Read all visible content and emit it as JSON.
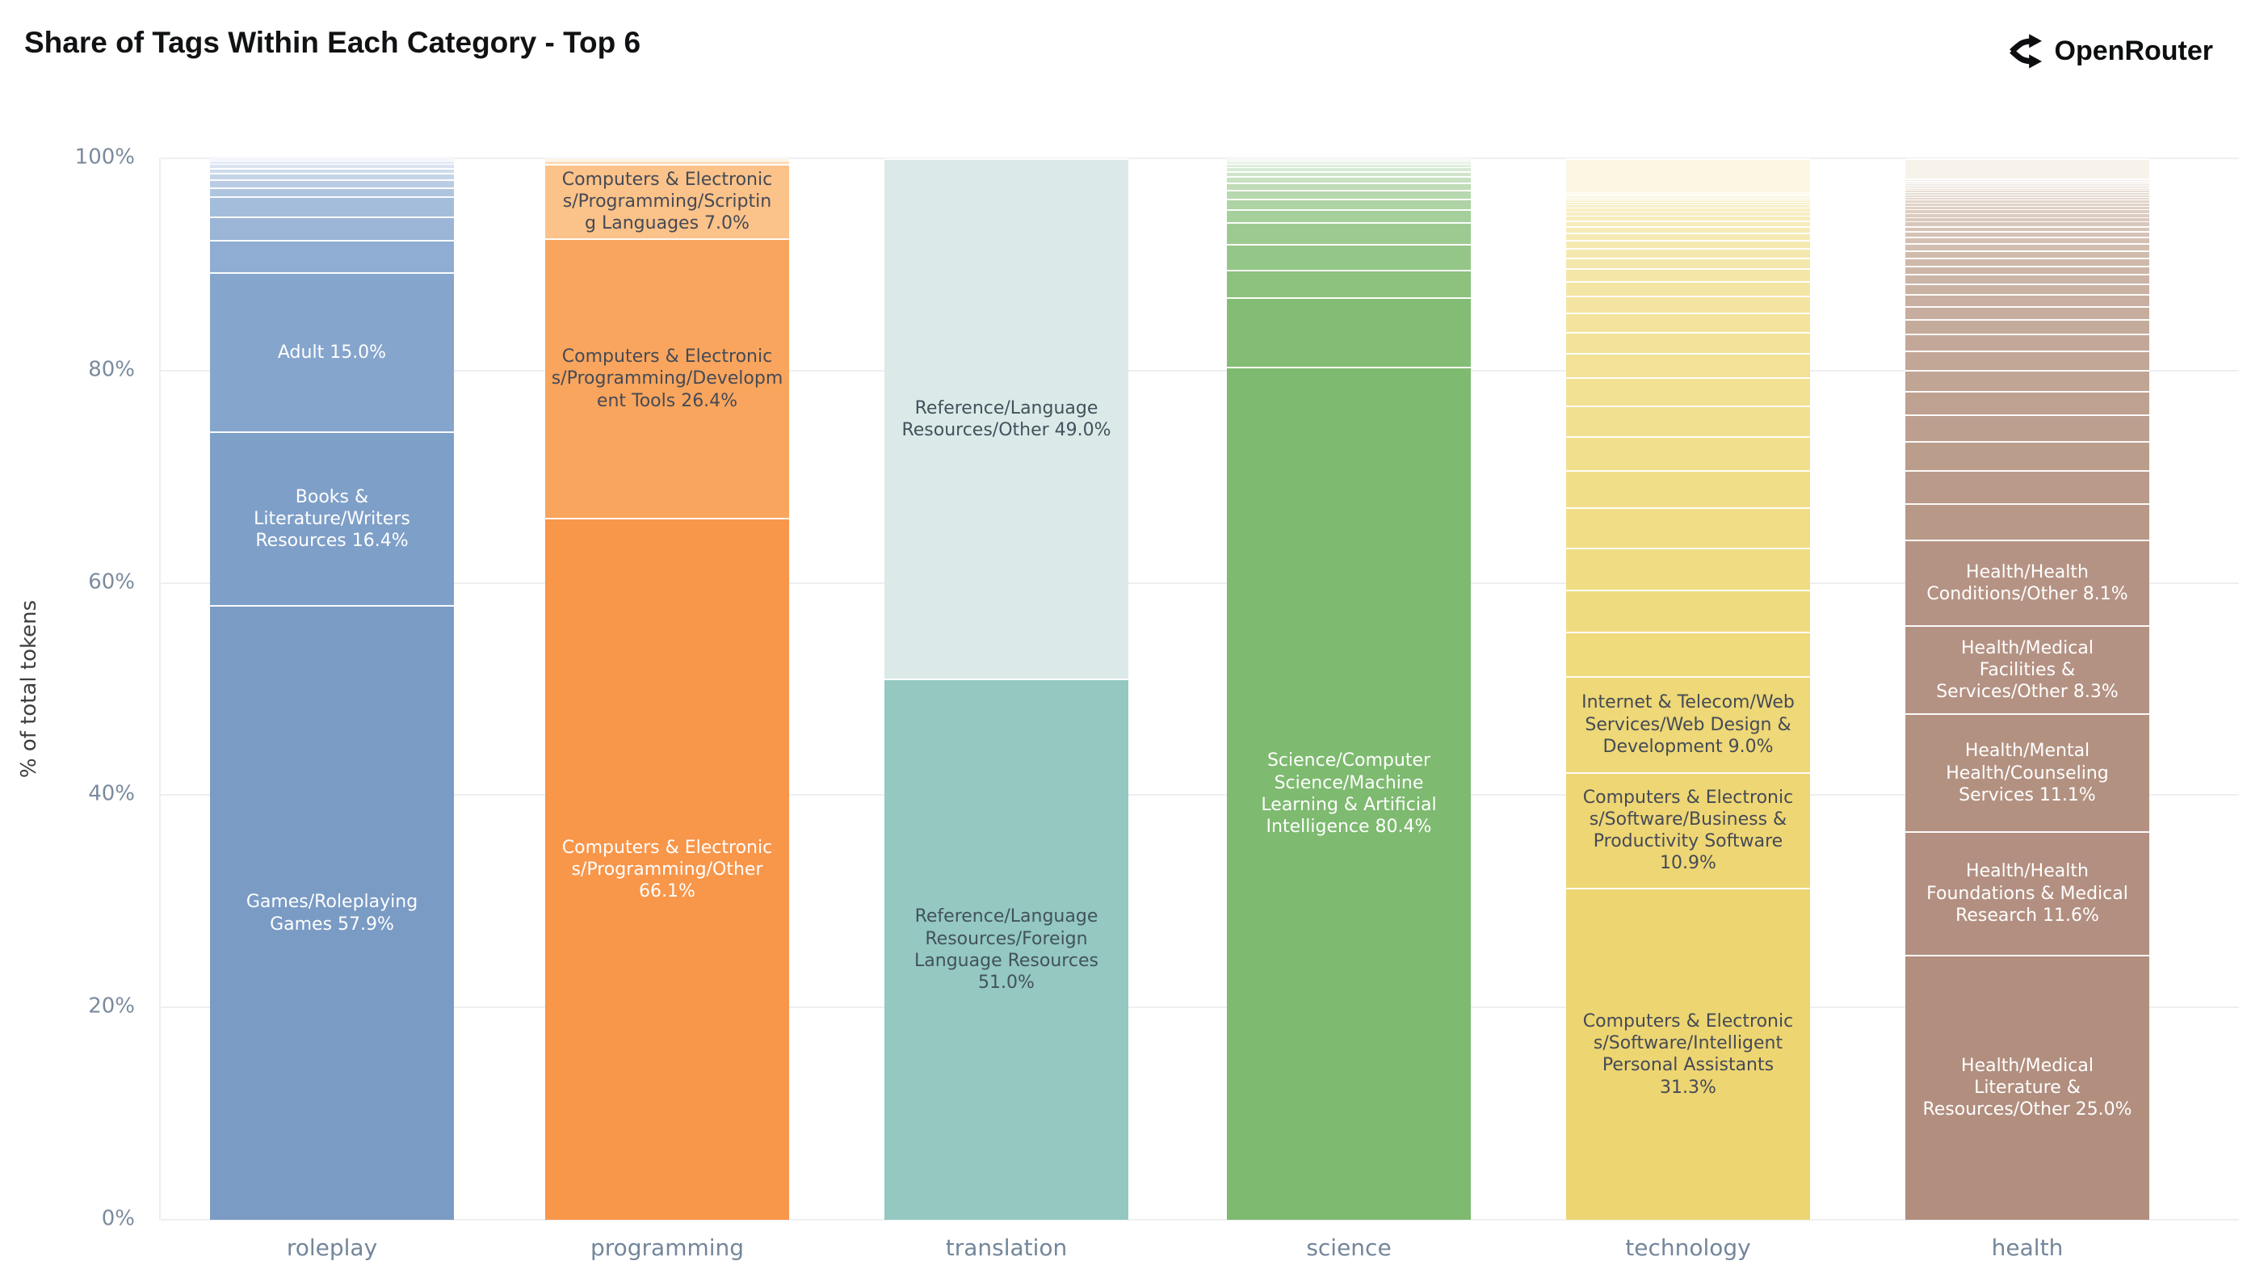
{
  "header": {
    "title": "Share of Tags Within Each Category - Top 6",
    "brand": "OpenRouter",
    "brand_icon": "openrouter-fork-icon"
  },
  "chart_data": {
    "type": "bar",
    "stacked": true,
    "normalized": "percent",
    "title": "Share of Tags Within Each Category - Top 6",
    "xlabel": "",
    "ylabel": "% of total tokens",
    "ylim": [
      0,
      100
    ],
    "grid": true,
    "legend": false,
    "yticks": [
      {
        "value": 0,
        "label": "0%"
      },
      {
        "value": 20,
        "label": "20%"
      },
      {
        "value": 40,
        "label": "40%"
      },
      {
        "value": 60,
        "label": "60%"
      },
      {
        "value": 80,
        "label": "80%"
      },
      {
        "value": 100,
        "label": "100%"
      }
    ],
    "categories": [
      "roleplay",
      "programming",
      "translation",
      "science",
      "technology",
      "health"
    ],
    "bars": [
      {
        "category": "roleplay",
        "segments": [
          {
            "label": "Games/Roleplaying\nGames 57.9%",
            "value": 57.9,
            "color": "#7a9bc4",
            "text_color": "#ffffff"
          },
          {
            "label": "Books &\nLiterature/Writers\nResources 16.4%",
            "value": 16.4,
            "color": "#7e9fc8",
            "text_color": "#ffffff"
          },
          {
            "label": "Adult 15.0%",
            "value": 15.0,
            "color": "#85a5cc",
            "text_color": "#ffffff"
          }
        ],
        "tail": {
          "values": [
            3.0,
            2.2,
            1.9,
            0.9,
            0.7,
            0.6,
            0.5,
            0.4,
            0.3,
            0.2
          ],
          "color_from": "#8fadd2",
          "color_to": "#eff3fa"
        }
      },
      {
        "category": "programming",
        "segments": [
          {
            "label": "Computers & Electronic\ns/Programming/Other\n66.1%",
            "value": 66.1,
            "color": "#f8964a",
            "text_color": "#ffffff"
          },
          {
            "label": "Computers & Electronic\ns/Programming/Developm\nent Tools 26.4%",
            "value": 26.4,
            "color": "#f9a55d",
            "text_color": "#454a56"
          },
          {
            "label": "Computers & Electronic\ns/Programming/Scriptin\ng Languages 7.0%",
            "value": 7.0,
            "color": "#fbc289",
            "text_color": "#454a56"
          }
        ],
        "tail": {
          "values": [
            0.3,
            0.2
          ],
          "color_from": "#fddcb8",
          "color_to": "#fdf0dc"
        }
      },
      {
        "category": "translation",
        "segments": [
          {
            "label": "Reference/Language\nResources/Foreign\nLanguage Resources\n51.0%",
            "value": 51.0,
            "color": "#94c8c1",
            "text_color": "#42525c"
          },
          {
            "label": "Reference/Language\nResources/Other 49.0%",
            "value": 49.0,
            "color": "#dbeae8",
            "text_color": "#42525c"
          }
        ],
        "tail": {
          "values": [],
          "color_from": "#dbeae8",
          "color_to": "#f2f7f6"
        }
      },
      {
        "category": "science",
        "segments": [
          {
            "label": "Science/Computer\nScience/Machine\nLearning & Artificial\nIntelligence 80.4%",
            "value": 80.4,
            "color": "#7eba70",
            "text_color": "#ffffff"
          }
        ],
        "tail": {
          "values": [
            6.5,
            2.6,
            2.4,
            2.1,
            1.2,
            1.0,
            0.8,
            0.7,
            0.6,
            0.5,
            0.4,
            0.3,
            0.3,
            0.2
          ],
          "color_from": "#83bd75",
          "color_to": "#f2f7f0"
        }
      },
      {
        "category": "technology",
        "segments": [
          {
            "label": "Computers & Electronic\ns/Software/Intelligent\nPersonal Assistants\n31.3%",
            "value": 31.3,
            "color": "#edd572",
            "text_color": "#454a56"
          },
          {
            "label": "Computers & Electronic\ns/Software/Business &\nProductivity Software\n10.9%",
            "value": 10.9,
            "color": "#eed674",
            "text_color": "#454a56"
          },
          {
            "label": "Internet & Telecom/Web\nServices/Web Design &\nDevelopment 9.0%",
            "value": 9.0,
            "color": "#eed877",
            "text_color": "#454a56"
          }
        ],
        "tail": {
          "values": [
            4.2,
            4.0,
            3.95,
            3.8,
            3.5,
            3.2,
            2.9,
            2.6,
            2.3,
            2.0,
            1.8,
            1.6,
            1.4,
            1.2,
            1.0,
            0.9,
            0.8,
            0.7,
            0.6,
            0.5,
            0.45,
            0.4,
            0.35,
            0.3,
            0.25,
            0.2,
            0.2,
            0.15,
            0.15,
            0.1,
            0.1,
            3.2
          ],
          "color_from": "#efda7c",
          "color_to": "#fbf7e3"
        }
      },
      {
        "category": "health",
        "segments": [
          {
            "label": "Health/Medical\nLiterature &\nResources/Other 25.0%",
            "value": 25.0,
            "color": "#b18e7e",
            "text_color": "#ffffff"
          },
          {
            "label": "Health/Health\nFoundations & Medical\nResearch 11.6%",
            "value": 11.6,
            "color": "#b28f80",
            "text_color": "#ffffff"
          },
          {
            "label": "Health/Mental\nHealth/Counseling\nServices 11.1%",
            "value": 11.1,
            "color": "#b39181",
            "text_color": "#ffffff"
          },
          {
            "label": "Health/Medical\nFacilities &\nServices/Other 8.3%",
            "value": 8.3,
            "color": "#b49283",
            "text_color": "#ffffff"
          },
          {
            "label": "Health/Health\nConditions/Other 8.1%",
            "value": 8.1,
            "color": "#b59384",
            "text_color": "#ffffff"
          }
        ],
        "tail": {
          "values": [
            3.4,
            3.1,
            2.8,
            2.5,
            2.2,
            2.0,
            1.8,
            1.6,
            1.4,
            1.2,
            1.1,
            1.0,
            0.9,
            0.8,
            0.75,
            0.7,
            0.65,
            0.6,
            0.55,
            0.5,
            0.45,
            0.4,
            0.38,
            0.35,
            0.32,
            0.3,
            0.28,
            0.26,
            0.24,
            0.22,
            0.2,
            0.18,
            0.16,
            0.15,
            0.14,
            0.13,
            0.12,
            0.11,
            0.1,
            1.86
          ],
          "color_from": "#b89887",
          "color_to": "#f7f3eb"
        }
      }
    ]
  }
}
